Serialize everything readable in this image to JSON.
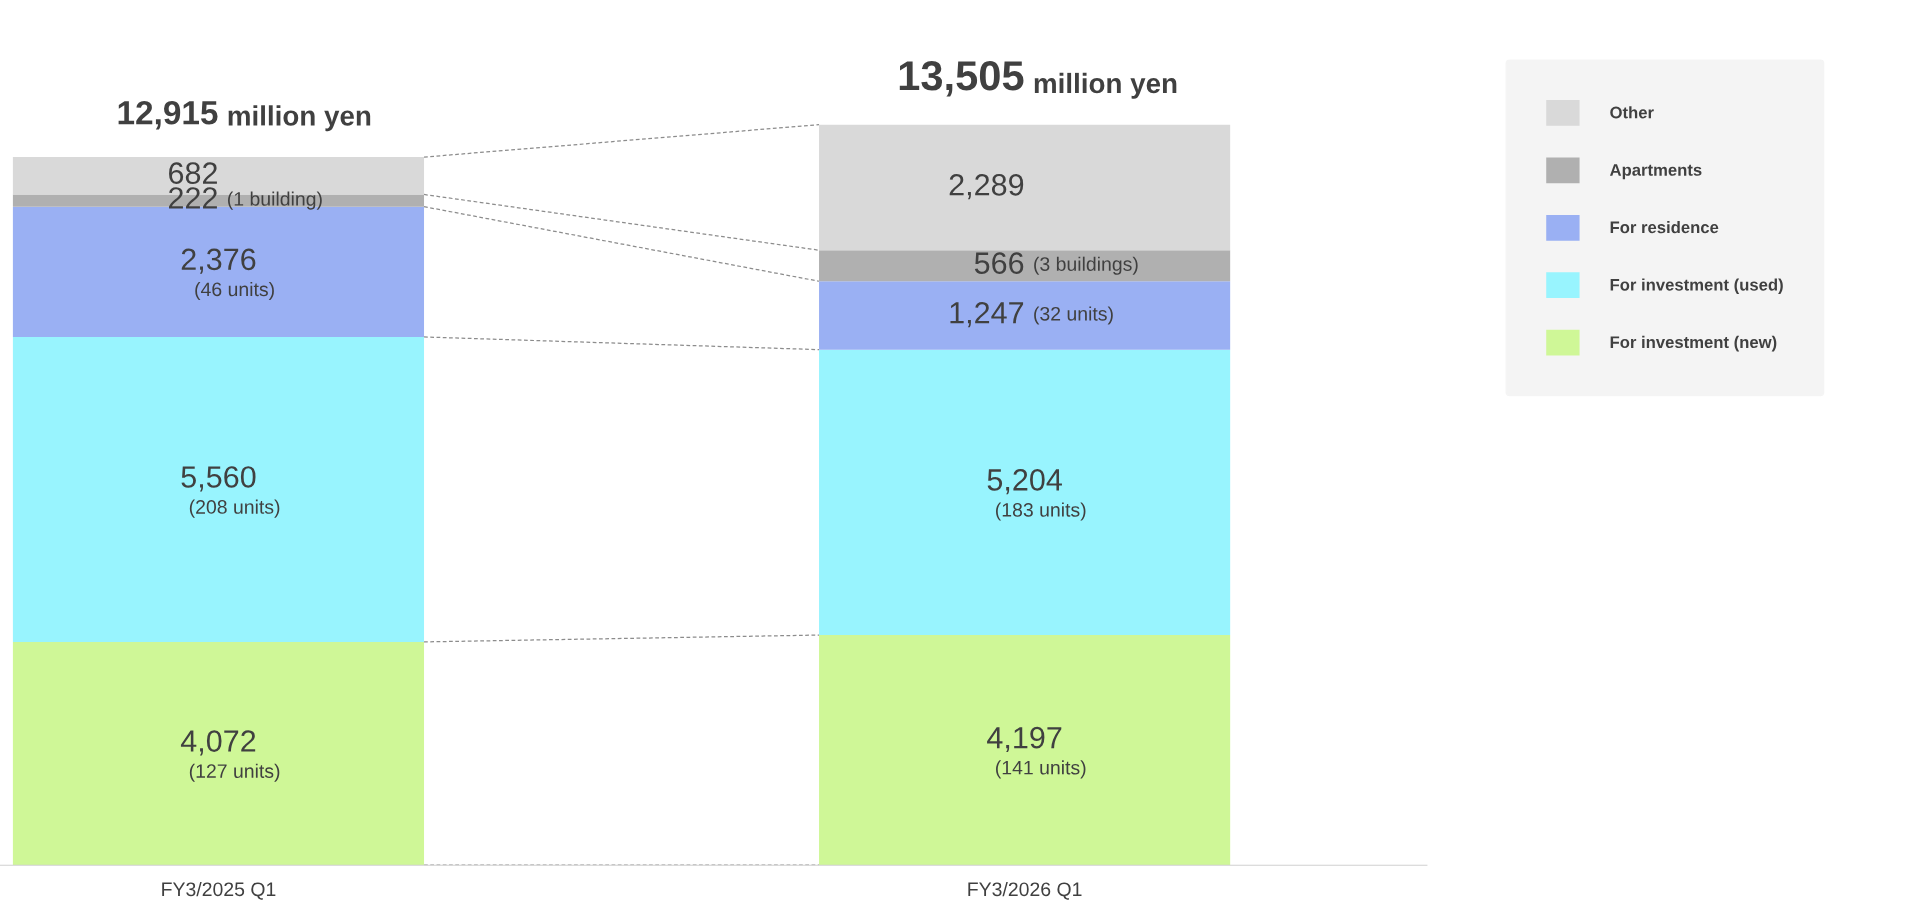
{
  "chart_data": {
    "type": "bar",
    "stacked": true,
    "categories": [
      "FY3/2025 Q1",
      "FY3/2026 Q1"
    ],
    "series": [
      {
        "name": "For investment (new)",
        "color": "#cff797",
        "values": [
          4072,
          4197
        ],
        "value_labels": [
          "4,072\n(127 units)",
          "4,197\n(141 units)"
        ]
      },
      {
        "name": "For investment (used)",
        "color": "#98f4fe",
        "values": [
          5560,
          5204
        ],
        "value_labels": [
          "5,560\n(208 units)",
          "5,204\n(183 units)"
        ]
      },
      {
        "name": "For residence",
        "color": "#9ab0f3",
        "values": [
          2376,
          1247
        ],
        "value_labels": [
          "2,376\n(46 units)",
          "1,247 (32 units)"
        ]
      },
      {
        "name": "Apartments",
        "color": "#b0b0b0",
        "values": [
          222,
          566
        ],
        "value_labels": [
          "222 (1 building)",
          "566 (3 buildings)"
        ]
      },
      {
        "name": "Other",
        "color": "#d9d9d9",
        "values": [
          682,
          2289
        ],
        "value_labels": [
          "682",
          "2,289"
        ]
      }
    ],
    "totals": [
      "12,915 million yen",
      "13,505 million yen"
    ],
    "legend": "right",
    "grid": false
  }
}
